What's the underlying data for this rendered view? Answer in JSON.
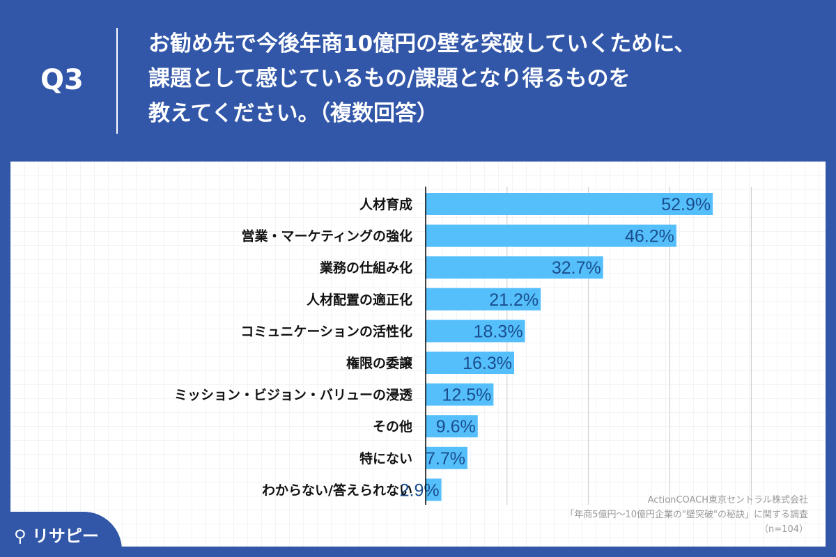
{
  "header": {
    "question_number": "Q3",
    "question_text": "お勧め先で今後年商10億円の壁を突破していくために、\n課題として感じているもの/課題となり得るものを\n教えてください。（複数回答）"
  },
  "chart_data": {
    "type": "bar",
    "orientation": "horizontal",
    "categories": [
      "人材育成",
      "営業・マーケティングの強化",
      "業務の仕組み化",
      "人材配置の適正化",
      "コミュニケーションの活性化",
      "権限の委譲",
      "ミッション・ビジョン・バリューの浸透",
      "その他",
      "特にない",
      "わからない/答えられない"
    ],
    "values": [
      52.9,
      46.2,
      32.7,
      21.2,
      18.3,
      16.3,
      12.5,
      9.6,
      7.7,
      2.9
    ],
    "data_labels": [
      "52.9%",
      "46.2%",
      "32.7%",
      "21.2%",
      "18.3%",
      "16.3%",
      "12.5%",
      "9.6%",
      "7.7%",
      "2.9%"
    ],
    "unit": "%",
    "xlim": [
      0,
      75
    ],
    "gridlines": [
      15,
      30,
      45,
      60
    ],
    "grid": true,
    "colors": {
      "bar": "#55bffc",
      "label": "#1a4d8c"
    }
  },
  "source": {
    "line1": "ActionCOACH東京セントラル株式会社",
    "line2": "「年商5億円～10億円企業の\"壁突破\"の秘訣」に関する調査",
    "line3": "（n=104）"
  },
  "logo": {
    "text": "リサピー"
  }
}
